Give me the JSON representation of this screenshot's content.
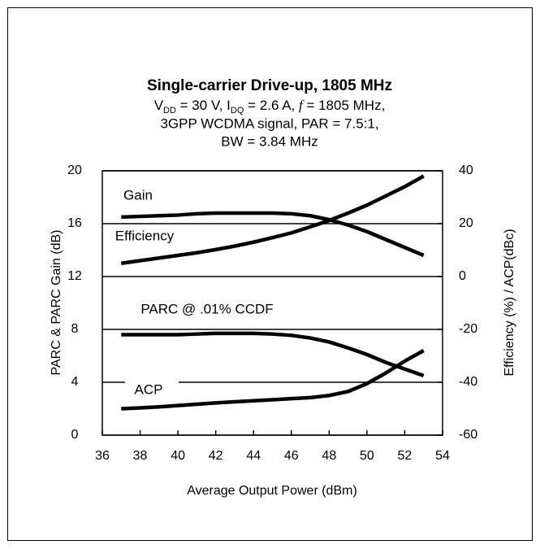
{
  "chart_data": {
    "type": "line",
    "title": "Single-carrier Drive-up, 1805 MHz",
    "subtitle": [
      [
        "V",
        "DD",
        " = 30 V, I",
        "DQ",
        " = 2.6 A, ",
        "f",
        " = 1805 MHz,"
      ],
      [
        "3GPP WCDMA signal,  PAR = 7.5:1,"
      ],
      [
        "BW = 3.84  MHz"
      ]
    ],
    "xlabel": "Average Output Power (dBm)",
    "ylabel": "PARC & PARC Gain (dB)",
    "y2label": "Efficiency (%) / ACP(dBc)",
    "annotations": [
      "Gain",
      "Efficiency",
      "PARC @ .01% CCDF",
      "ACP"
    ],
    "x": [
      37,
      38,
      39,
      40,
      41,
      42,
      43,
      44,
      45,
      46,
      47,
      48,
      49,
      50,
      51,
      52,
      53
    ],
    "xlim": [
      36,
      54
    ],
    "xticks": [
      36,
      38,
      40,
      42,
      44,
      46,
      48,
      50,
      52,
      54
    ],
    "ylim": [
      0,
      20
    ],
    "yticks": [
      0,
      4,
      8,
      12,
      16,
      20
    ],
    "y2lim": [
      -60,
      40
    ],
    "y2ticks": [
      -60,
      -40,
      -20,
      0,
      20,
      40
    ],
    "grid": true,
    "series": [
      {
        "name": "Gain",
        "color": "#000000",
        "values": [
          16.5,
          16.55,
          16.6,
          16.65,
          16.75,
          16.8,
          16.8,
          16.8,
          16.8,
          16.75,
          16.6,
          16.3,
          15.9,
          15.4,
          14.8,
          14.2,
          13.6
        ]
      },
      {
        "name": "Efficiency",
        "color": "#000000",
        "axis": "y2",
        "values": [
          5,
          6,
          7,
          8,
          9,
          10.2,
          11.5,
          13,
          14.7,
          16.5,
          18.8,
          21.2,
          24,
          27,
          30.5,
          34,
          38
        ]
      },
      {
        "name": "PARC @ .01% CCDF",
        "color": "#000000",
        "values": [
          7.6,
          7.6,
          7.6,
          7.6,
          7.65,
          7.7,
          7.7,
          7.7,
          7.65,
          7.55,
          7.35,
          7.05,
          6.6,
          6.1,
          5.5,
          5.0,
          4.5
        ]
      },
      {
        "name": "ACP",
        "color": "#000000",
        "axis": "y2",
        "values": [
          -50,
          -49.7,
          -49.3,
          -48.8,
          -48.3,
          -47.8,
          -47.4,
          -47,
          -46.6,
          -46.2,
          -45.8,
          -45,
          -43.5,
          -40.5,
          -36.5,
          -32,
          -28
        ]
      }
    ]
  }
}
